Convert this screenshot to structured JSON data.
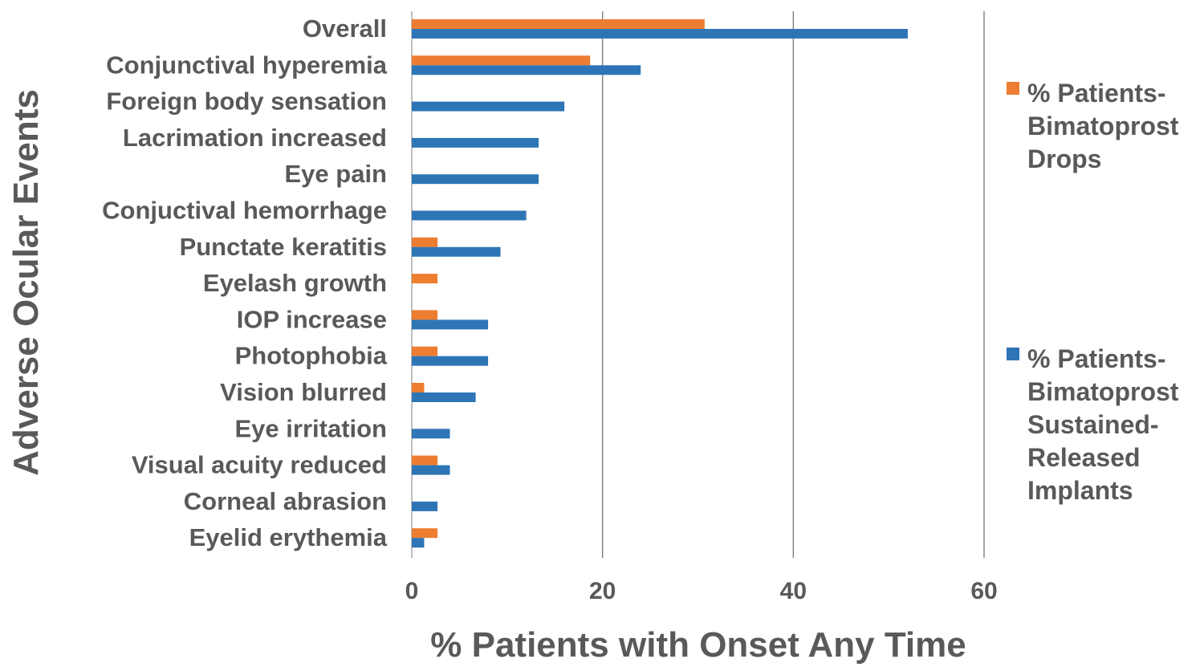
{
  "chart_data": {
    "type": "bar",
    "orientation": "horizontal",
    "title": "",
    "xlabel": "% Patients with Onset Any Time",
    "ylabel": "Adverse Ocular Events",
    "xlim": [
      0,
      60
    ],
    "xticks": [
      0,
      20,
      40,
      60
    ],
    "grid": true,
    "legend_position": "right",
    "categories": [
      "Overall",
      "Conjunctival hyperemia",
      "Foreign body sensation",
      "Lacrimation increased",
      "Eye pain",
      "Conjuctival hemorrhage",
      "Punctate keratitis",
      "Eyelash growth",
      "IOP increase",
      "Photophobia",
      "Vision blurred",
      "Eye irritation",
      "Visual acuity reduced",
      "Corneal abrasion",
      "Eyelid erythemia"
    ],
    "series": [
      {
        "name": "% Patients-Bimatoprost Drops",
        "legend_lines": [
          "% Patients-",
          "Bimatoprost",
          "Drops"
        ],
        "color": "#ed7d31",
        "values": [
          30.7,
          18.7,
          0,
          0,
          0,
          0,
          2.7,
          2.7,
          2.7,
          2.7,
          1.3,
          0,
          2.7,
          0,
          2.7
        ]
      },
      {
        "name": "% Patients-Bimatoprost Sustained-Released Implants",
        "legend_lines": [
          "% Patients-",
          "Bimatoprost",
          "Sustained-",
          "Released",
          "Implants"
        ],
        "color": "#2e75b6",
        "values": [
          52.0,
          24.0,
          16.0,
          13.3,
          13.3,
          12.0,
          9.3,
          0,
          8.0,
          8.0,
          6.7,
          4.0,
          4.0,
          2.7,
          1.3
        ]
      }
    ]
  }
}
